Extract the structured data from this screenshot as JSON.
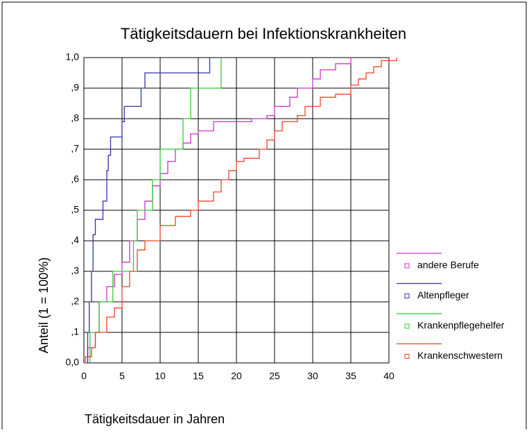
{
  "chart_data": {
    "type": "step",
    "title": "Tätigkeitsdauern bei Infektionskrankheiten",
    "x_label": "Tätigkeitsdauer in Jahren",
    "y_label": "Anteil (1 = 100%)",
    "xlim": [
      0,
      40
    ],
    "ylim": [
      0,
      1
    ],
    "xticks": [
      0,
      5,
      10,
      15,
      20,
      25,
      30,
      35,
      40
    ],
    "yticks": [
      {
        "value": 0,
        "label": "0,0"
      },
      {
        "value": 0.1,
        "label": ",1"
      },
      {
        "value": 0.2,
        "label": ",2"
      },
      {
        "value": 0.3,
        "label": ",3"
      },
      {
        "value": 0.4,
        "label": ",4"
      },
      {
        "value": 0.5,
        "label": ",5"
      },
      {
        "value": 0.6,
        "label": ",6"
      },
      {
        "value": 0.7,
        "label": ",7"
      },
      {
        "value": 0.8,
        "label": ",8"
      },
      {
        "value": 0.9,
        "label": ",9"
      },
      {
        "value": 1,
        "label": "1,0"
      }
    ],
    "grid": true,
    "legend": "right",
    "series": [
      {
        "name": "andere Berufe",
        "color": "#cc33cc",
        "x": [
          0,
          0.5,
          1.5,
          2,
          3,
          4,
          5,
          6,
          7,
          8,
          9,
          10,
          11,
          12,
          13,
          14,
          15,
          17,
          22,
          24,
          25,
          27,
          28,
          30,
          31,
          33,
          35
        ],
        "values": [
          0,
          0.05,
          0.1,
          0.2,
          0.25,
          0.29,
          0.33,
          0.4,
          0.47,
          0.53,
          0.58,
          0.62,
          0.66,
          0.7,
          0.72,
          0.75,
          0.76,
          0.79,
          0.8,
          0.81,
          0.84,
          0.87,
          0.9,
          0.93,
          0.96,
          0.98,
          1
        ]
      },
      {
        "name": "Altenpfleger",
        "color": "#3333aa",
        "x": [
          0.3,
          0.5,
          0.7,
          1,
          1.2,
          1.5,
          2.5,
          3,
          3.2,
          3.5,
          5,
          5.3,
          7.5,
          8,
          16.5
        ],
        "values": [
          0,
          0.1,
          0.2,
          0.3,
          0.42,
          0.47,
          0.53,
          0.63,
          0.68,
          0.74,
          0.79,
          0.84,
          0.9,
          0.95,
          1
        ]
      },
      {
        "name": "Krankenpflegehelfer",
        "color": "#33cc33",
        "x": [
          0.8,
          0.8,
          2,
          3.8,
          6.5,
          7,
          9,
          10,
          13,
          14,
          18
        ],
        "values": [
          0,
          0.1,
          0.2,
          0.3,
          0.4,
          0.5,
          0.6,
          0.7,
          0.8,
          0.9,
          1
        ]
      },
      {
        "name": "Krankenschwestern",
        "color": "#ee4422",
        "x": [
          0,
          0.2,
          1,
          1.5,
          3,
          4,
          5,
          6,
          7,
          8,
          10,
          12,
          14,
          15,
          17,
          18,
          19,
          20,
          21,
          23,
          24,
          25,
          26,
          28,
          29,
          31,
          33,
          35,
          36,
          37,
          38,
          39,
          41
        ],
        "values": [
          0,
          0.02,
          0.05,
          0.1,
          0.15,
          0.18,
          0.25,
          0.3,
          0.37,
          0.4,
          0.45,
          0.48,
          0.5,
          0.53,
          0.56,
          0.6,
          0.63,
          0.66,
          0.67,
          0.7,
          0.73,
          0.76,
          0.79,
          0.81,
          0.84,
          0.87,
          0.88,
          0.91,
          0.93,
          0.95,
          0.97,
          0.99,
          1
        ]
      }
    ]
  }
}
